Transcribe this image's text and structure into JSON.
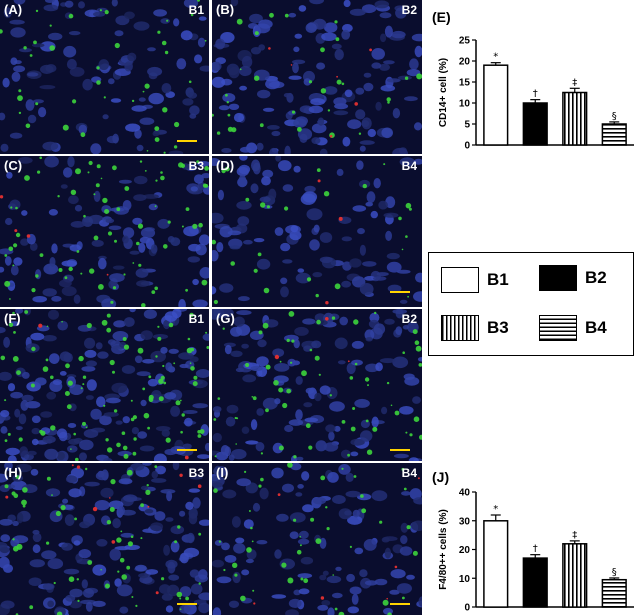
{
  "micrographs": [
    {
      "id": "A",
      "label": "(A)",
      "group": "B1",
      "density": 0.55,
      "green": 40,
      "red": 0
    },
    {
      "id": "B",
      "label": "(B)",
      "group": "B2",
      "density": 0.75,
      "green": 30,
      "red": 6
    },
    {
      "id": "C",
      "label": "(C)",
      "group": "B3",
      "density": 0.6,
      "green": 70,
      "red": 4
    },
    {
      "id": "D",
      "label": "(D)",
      "group": "B4",
      "density": 0.55,
      "green": 25,
      "red": 3
    },
    {
      "id": "F",
      "label": "(F)",
      "group": "B1",
      "density": 0.9,
      "green": 90,
      "red": 2
    },
    {
      "id": "G",
      "label": "(G)",
      "group": "B2",
      "density": 0.7,
      "green": 60,
      "red": 3
    },
    {
      "id": "H",
      "label": "(H)",
      "group": "B3",
      "density": 0.9,
      "green": 55,
      "red": 10
    },
    {
      "id": "I",
      "label": "(I)",
      "group": "B4",
      "density": 0.6,
      "green": 45,
      "red": 6
    }
  ],
  "legend": {
    "items": [
      {
        "name": "B1",
        "fill": "white"
      },
      {
        "name": "B2",
        "fill": "black"
      },
      {
        "name": "B3",
        "fill": "vertical-stripes"
      },
      {
        "name": "B4",
        "fill": "horizontal-stripes"
      }
    ]
  },
  "chart_data": [
    {
      "type": "bar",
      "panel_label": "(E)",
      "title": "",
      "xlabel": "",
      "ylabel": "CD14+ cell (%)",
      "ylim": [
        0,
        25
      ],
      "yticks": [
        0,
        5,
        10,
        15,
        20,
        25
      ],
      "categories": [
        "B1",
        "B2",
        "B3",
        "B4"
      ],
      "values": [
        19,
        10,
        12.5,
        5
      ],
      "errors": [
        0.6,
        0.8,
        1.0,
        0.5
      ],
      "significance": [
        "*",
        "†",
        "‡",
        "§"
      ]
    },
    {
      "type": "bar",
      "panel_label": "(J)",
      "title": "",
      "xlabel": "",
      "ylabel": "F4/80++ cells (%)",
      "ylim": [
        0,
        40
      ],
      "yticks": [
        0,
        10,
        20,
        30,
        40
      ],
      "categories": [
        "B1",
        "B2",
        "B3",
        "B4"
      ],
      "values": [
        30,
        17,
        22,
        9.5
      ],
      "errors": [
        2.0,
        1.2,
        1.0,
        0.6
      ],
      "significance": [
        "*",
        "†",
        "‡",
        "§"
      ]
    }
  ]
}
